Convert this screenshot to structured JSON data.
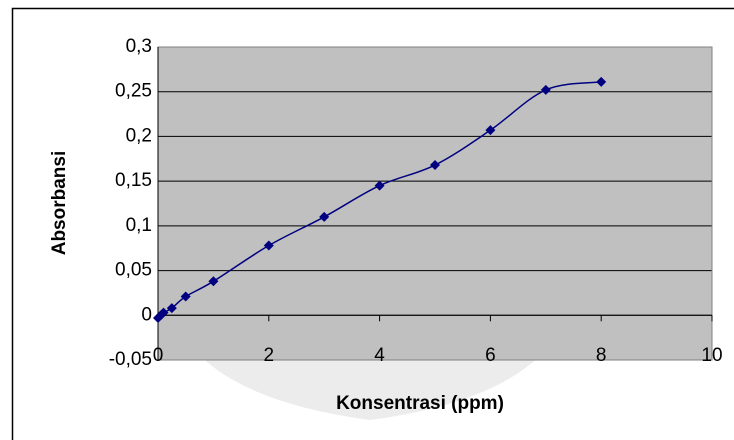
{
  "chart_data": {
    "type": "scatter",
    "x_label": "Konsentrasi (ppm)",
    "y_label": "Absorbansi",
    "series": [
      {
        "color": "#000080",
        "x": [
          0,
          0.05,
          0.1,
          0.25,
          0.5,
          1,
          2,
          3,
          4,
          5,
          6,
          7,
          8
        ],
        "values": [
          -0.003,
          0,
          0.003,
          0.008,
          0.021,
          0.038,
          0.078,
          0.11,
          0.145,
          0.168,
          0.207,
          0.252,
          0.261
        ]
      }
    ],
    "xlim": [
      0,
      10
    ],
    "xticks": [
      0,
      2,
      4,
      6,
      8,
      10
    ],
    "ylim": [
      -0.05,
      0.3
    ],
    "yticks": [
      {
        "value": -0.05,
        "label": "-0,05"
      },
      0,
      {
        "value": 0.05,
        "label": "0,05"
      },
      {
        "value": 0.1,
        "label": "0,1"
      },
      {
        "value": 0.15,
        "label": "0,15"
      },
      {
        "value": 0.2,
        "label": "0,2"
      },
      {
        "value": 0.25,
        "label": "0,25"
      },
      {
        "value": 0.3,
        "label": "0,3"
      }
    ],
    "grid": true,
    "smooth": true
  }
}
